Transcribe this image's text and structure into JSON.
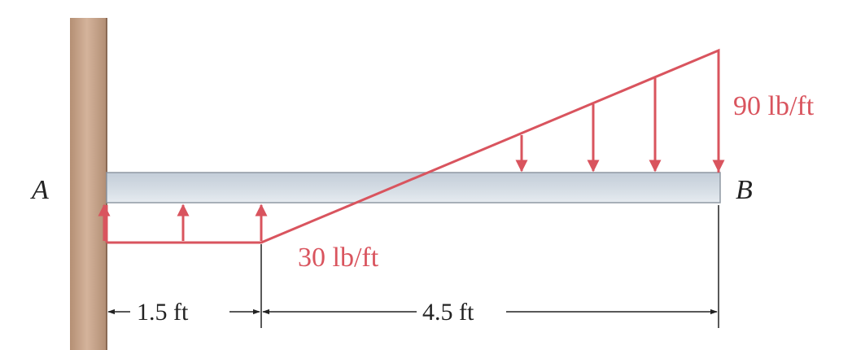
{
  "diagram": {
    "points": {
      "a": "A",
      "b": "B"
    },
    "loads": {
      "right_end": "90 lb/ft",
      "left_segment": "30 lb/ft"
    },
    "dimensions": {
      "left_span": "1.5 ft",
      "right_span": "4.5 ft"
    }
  },
  "colors": {
    "load": "#d9545e",
    "wall": "#c8a58a",
    "beam_top": "#bcc7d3",
    "beam_bottom": "#dfe5ec",
    "ink": "#222222"
  }
}
